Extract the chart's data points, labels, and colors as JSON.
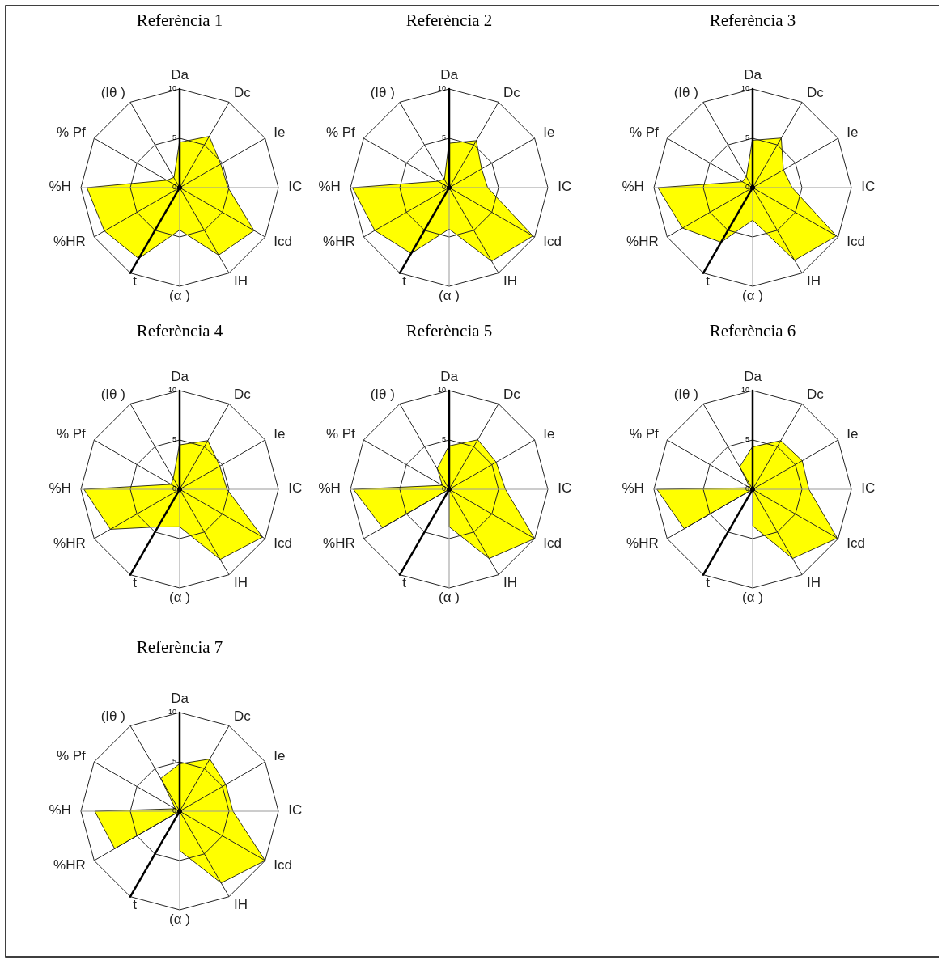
{
  "chart_data": [
    {
      "type": "radar",
      "title": "Referència 1",
      "categories": [
        "Da",
        "Dc",
        "Ie",
        "IC",
        "Icd",
        "IH",
        "(α )",
        "t",
        "%HR",
        "%H",
        "% Pf",
        "(Iθ )"
      ],
      "ylim": [
        0,
        10
      ],
      "yticks": [
        0,
        5,
        10
      ],
      "grid": true,
      "series": [
        {
          "color": "#ffff00",
          "values": [
            4.6,
            6.0,
            4.8,
            4.9,
            8.7,
            7.9,
            4.3,
            8.3,
            8.8,
            9.4,
            1.5,
            1.2
          ]
        },
        {
          "color": "#000000",
          "values": [
            10,
            0,
            0,
            0,
            0,
            0,
            0,
            10,
            0,
            0,
            0,
            0
          ]
        }
      ]
    },
    {
      "type": "radar",
      "title": "Referència 2",
      "categories": [
        "Da",
        "Dc",
        "Ie",
        "IC",
        "Icd",
        "IH",
        "(α )",
        "t",
        "%HR",
        "%H",
        "% Pf",
        "(Iθ )"
      ],
      "ylim": [
        0,
        10
      ],
      "yticks": [
        0,
        5,
        10
      ],
      "grid": true,
      "series": [
        {
          "color": "#ffff00",
          "values": [
            4.5,
            5.5,
            3.8,
            3.9,
            9.8,
            8.6,
            4.2,
            7.7,
            8.7,
            9.8,
            1.3,
            1.0
          ]
        },
        {
          "color": "#000000",
          "values": [
            10,
            0,
            0,
            0,
            0,
            0,
            0,
            10,
            0,
            0,
            0,
            0
          ]
        }
      ]
    },
    {
      "type": "radar",
      "title": "Referència 3",
      "categories": [
        "Da",
        "Dc",
        "Ie",
        "IC",
        "Icd",
        "IH",
        "(α )",
        "t",
        "%HR",
        "%H",
        "% Pf",
        "(Iθ )"
      ],
      "ylim": [
        0,
        10
      ],
      "yticks": [
        0,
        5,
        10
      ],
      "grid": true,
      "series": [
        {
          "color": "#ffff00",
          "values": [
            4.8,
            5.8,
            3.6,
            4.0,
            9.8,
            8.5,
            3.3,
            6.4,
            8.2,
            9.6,
            1.2,
            1.3
          ]
        },
        {
          "color": "#000000",
          "values": [
            10,
            0,
            0,
            0,
            0,
            0,
            0,
            10,
            0,
            0,
            0,
            0
          ]
        }
      ]
    },
    {
      "type": "radar",
      "title": "Referència 4",
      "categories": [
        "Da",
        "Dc",
        "Ie",
        "IC",
        "Icd",
        "IH",
        "(α )",
        "t",
        "%HR",
        "%H",
        "% Pf",
        "(Iθ )"
      ],
      "ylim": [
        0,
        10
      ],
      "yticks": [
        0,
        5,
        10
      ],
      "grid": true,
      "series": [
        {
          "color": "#ffff00",
          "values": [
            4.5,
            5.7,
            4.7,
            4.8,
            9.7,
            8.2,
            3.8,
            4.4,
            8.1,
            9.7,
            1.0,
            1.3
          ]
        },
        {
          "color": "#000000",
          "values": [
            10,
            0,
            0,
            0,
            0,
            0,
            0,
            10,
            0,
            0,
            0,
            0
          ]
        }
      ]
    },
    {
      "type": "radar",
      "title": "Referència 5",
      "categories": [
        "Da",
        "Dc",
        "Ie",
        "IC",
        "Icd",
        "IH",
        "(α )",
        "t",
        "%HR",
        "%H",
        "% Pf",
        "(Iθ )"
      ],
      "ylim": [
        0,
        10
      ],
      "yticks": [
        0,
        5,
        10
      ],
      "grid": true,
      "series": [
        {
          "color": "#ffff00",
          "values": [
            4.4,
            5.8,
            5.5,
            5.7,
            10.0,
            8.1,
            3.8,
            0,
            7.8,
            9.7,
            0.8,
            2.4
          ]
        },
        {
          "color": "#000000",
          "values": [
            10,
            0,
            0,
            0,
            0,
            0,
            0,
            10,
            0,
            0,
            0,
            0
          ]
        }
      ]
    },
    {
      "type": "radar",
      "title": "Referència 6",
      "categories": [
        "Da",
        "Dc",
        "Ie",
        "IC",
        "Icd",
        "IH",
        "(α )",
        "t",
        "%HR",
        "%H",
        "% Pf",
        "(Iθ )"
      ],
      "ylim": [
        0,
        10
      ],
      "yticks": [
        0,
        5,
        10
      ],
      "grid": true,
      "series": [
        {
          "color": "#ffff00",
          "values": [
            4.3,
            5.7,
            5.8,
            5.7,
            9.9,
            8.1,
            3.7,
            0,
            8.0,
            9.7,
            0.3,
            2.6
          ]
        },
        {
          "color": "#000000",
          "values": [
            10,
            0,
            0,
            0,
            0,
            0,
            0,
            10,
            0,
            0,
            0,
            0
          ]
        }
      ]
    },
    {
      "type": "radar",
      "title": "Referència 7",
      "categories": [
        "Da",
        "Dc",
        "Ie",
        "IC",
        "Icd",
        "IH",
        "(α )",
        "t",
        "%HR",
        "%H",
        "% Pf",
        "(Iθ )"
      ],
      "ylim": [
        0,
        10
      ],
      "yticks": [
        0,
        5,
        10
      ],
      "grid": true,
      "series": [
        {
          "color": "#ffff00",
          "values": [
            4.8,
            6.1,
            5.4,
            5.4,
            10.0,
            8.4,
            4.0,
            0,
            7.6,
            8.6,
            0.5,
            3.8
          ]
        },
        {
          "color": "#000000",
          "values": [
            10,
            0,
            0,
            0,
            0,
            0,
            0,
            10,
            0,
            0,
            0,
            0
          ]
        }
      ]
    }
  ]
}
